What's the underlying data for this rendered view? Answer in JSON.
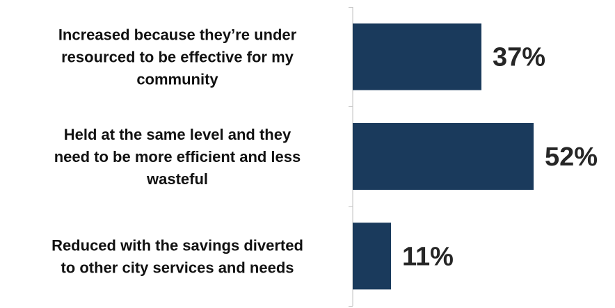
{
  "chart_data": {
    "type": "bar",
    "orientation": "horizontal",
    "categories": [
      "Increased because they’re under resourced to be effective for my community",
      "Held at the same level and they need to be more efficient and less wasteful",
      "Reduced with the savings diverted to other city services and needs"
    ],
    "category_lines": [
      [
        "Increased because they’re under",
        "resourced to be effective for my",
        "community"
      ],
      [
        "Held at the same level and they",
        "need to be more efficient and less",
        "wasteful"
      ],
      [
        "Reduced with the savings diverted",
        "to other city services and needs"
      ]
    ],
    "values": [
      37,
      52,
      11
    ],
    "data_labels": [
      "37%",
      "52%",
      "11%"
    ],
    "unit": "%",
    "xlim": [
      0,
      100
    ],
    "bar_color": "#1a3a5c",
    "axis_color": "#bfbfbf",
    "grid": false,
    "legend": "none"
  }
}
